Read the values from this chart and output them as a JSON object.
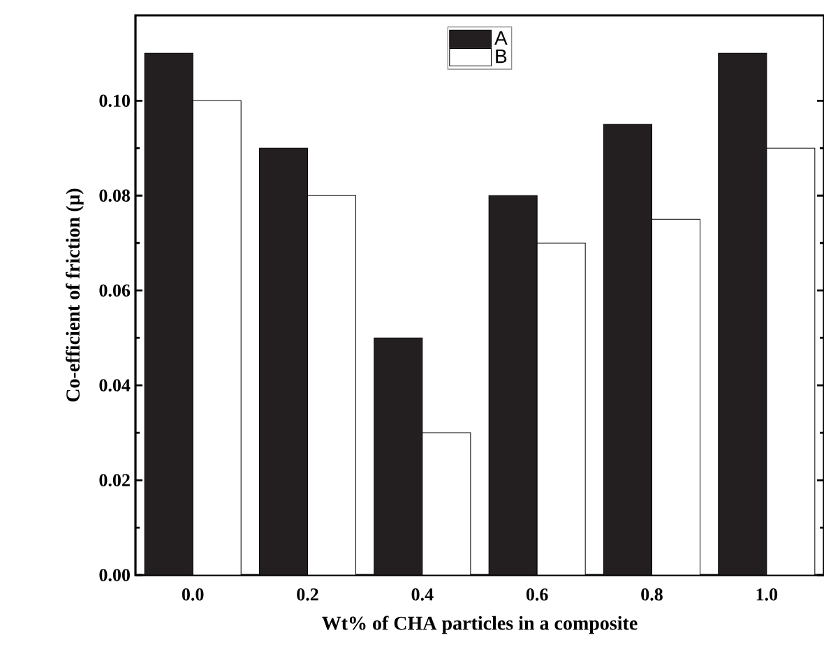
{
  "chart_data": {
    "type": "bar",
    "xlabel": "Wt% of CHA particles in a composite",
    "ylabel": "Co-efficient of friction (μ)",
    "categories": [
      "0.0",
      "0.2",
      "0.4",
      "0.6",
      "0.8",
      "1.0"
    ],
    "series": [
      {
        "name": "A",
        "color": "#231f20",
        "values": [
          0.11,
          0.09,
          0.05,
          0.08,
          0.095,
          0.11
        ]
      },
      {
        "name": "B",
        "color": "#ffffff",
        "values": [
          0.1,
          0.08,
          0.03,
          0.07,
          0.075,
          0.09
        ]
      }
    ],
    "ylim": [
      0,
      0.118
    ],
    "yticks": [
      {
        "value": 0,
        "label": "0.00"
      },
      {
        "value": 0.02,
        "label": "0.02"
      },
      {
        "value": 0.04,
        "label": "0.04"
      },
      {
        "value": 0.06,
        "label": "0.06"
      },
      {
        "value": 0.08,
        "label": "0.08"
      },
      {
        "value": 0.1,
        "label": "0.10"
      }
    ],
    "grid": false,
    "legend": "top"
  }
}
